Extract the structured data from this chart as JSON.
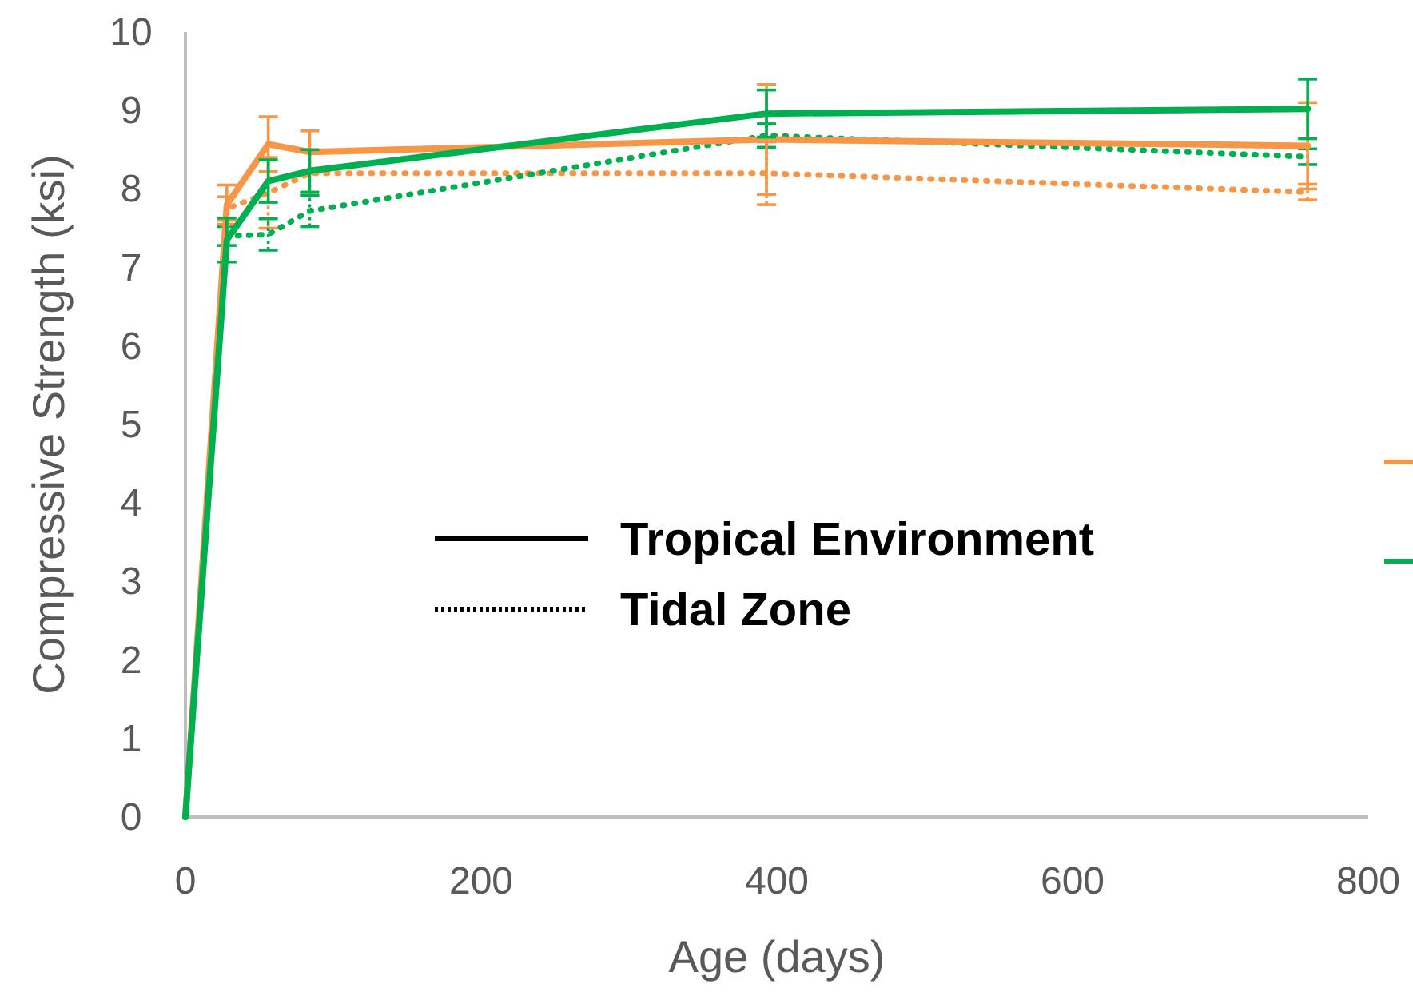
{
  "chart_data": {
    "type": "line",
    "xlabel": "Age (days)",
    "ylabel": "Compressive Strength (ksi)",
    "xlim": [
      0,
      800
    ],
    "xticks": [
      0,
      200,
      400,
      600,
      800
    ],
    "ylim": [
      0,
      10
    ],
    "yticks": [
      0,
      1,
      2,
      3,
      4,
      5,
      6,
      7,
      8,
      9,
      10
    ],
    "grid": false,
    "legend": false,
    "annotations": [
      "Tropical Environment",
      "Tidal Zone"
    ],
    "series": [
      {
        "color": "#f79646",
        "line_style": "dotted",
        "x": [
          0,
          28,
          56,
          84,
          393,
          759
        ],
        "values": [
          0,
          7.75,
          7.95,
          8.2,
          8.2,
          7.96
        ],
        "errors": [
          null,
          0.15,
          0.45,
          0.28,
          0.4,
          0.1
        ]
      },
      {
        "color": "#00b050",
        "line_style": "dotted",
        "x": [
          0,
          28,
          56,
          84,
          393,
          759
        ],
        "values": [
          0,
          7.4,
          7.42,
          7.72,
          8.68,
          8.41
        ],
        "errors": [
          null,
          0.12,
          0.2,
          0.2,
          0.15,
          0.1
        ]
      },
      {
        "color": "#f79646",
        "line_style": "solid",
        "x": [
          0,
          28,
          56,
          84,
          393,
          759
        ],
        "values": [
          0,
          7.8,
          8.57,
          8.47,
          8.63,
          8.55
        ],
        "errors": [
          null,
          0.25,
          0.35,
          0.27,
          0.7,
          0.55
        ]
      },
      {
        "color": "#00b050",
        "line_style": "solid",
        "x": [
          0,
          28,
          56,
          84,
          393,
          759
        ],
        "values": [
          0,
          7.35,
          8.1,
          8.23,
          8.96,
          9.02
        ],
        "errors": [
          null,
          0.28,
          0.27,
          0.27,
          0.3,
          0.38
        ]
      }
    ]
  }
}
